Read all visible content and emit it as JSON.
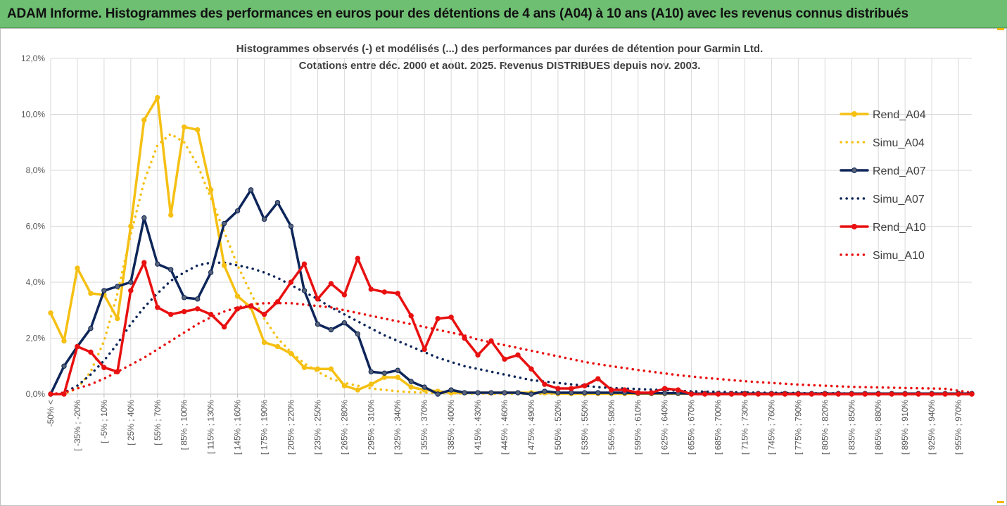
{
  "header": {
    "title": "ADAM Informe. Histogrammes des performances en euros pour des détentions de 4 ans (A04) à 10 ans (A10) avec les revenus connus distribués"
  },
  "chart_data": {
    "type": "line",
    "title_line1": "Histogrammes observés (-) et modélisés (...) des performances par durées de détention pour Garmin Ltd.",
    "title_line2": "Cotations entre déc. 2000 et aoüt. 2025.  Revenus DISTRIBUES depuis nov. 2003.",
    "ylim": [
      0,
      12
    ],
    "y_ticks": [
      "0,0%",
      "2,0%",
      "4,0%",
      "6,0%",
      "8,0%",
      "10,0%",
      "12,0%"
    ],
    "grid": true,
    "legend_position": "right",
    "x_tick_labels": [
      "-50% <",
      "[ -35% ; -20%",
      "[ -5% ; 10%",
      "[ 25% ; 40%",
      "[ 55% ; 70%",
      "[ 85% ; 100%",
      "[ 115% ; 130%",
      "[ 145% ; 160%",
      "[ 175% ; 190%",
      "[ 205% ; 220%",
      "[ 235% ; 250%",
      "[ 265% ; 280%",
      "[ 295% ; 310%",
      "[ 325% ; 340%",
      "[ 355% ; 370%",
      "[ 385% ; 400%",
      "[ 415% ; 430%",
      "[ 445% ; 460%",
      "[ 475% ; 490%",
      "[ 505% ; 520%",
      "[ 535% ; 550%",
      "[ 565% ; 580%",
      "[ 595% ; 610%",
      "[ 625% ; 640%",
      "[ 655% ; 670%",
      "[ 685% ; 700%",
      "[ 715% ; 730%",
      "[ 745% ; 760%",
      "[ 775% ; 790%",
      "[ 805% ; 820%",
      "[ 835% ; 850%",
      "[ 865% ; 880%",
      "[ 895% ; 910%",
      "[ 925% ; 940%",
      "[ 955% ; 970%"
    ],
    "series": [
      {
        "name": "Rend_A04",
        "color": "#f5c013",
        "style": "solid",
        "values": [
          2.9,
          1.9,
          4.5,
          3.6,
          3.55,
          2.7,
          6.0,
          9.8,
          10.6,
          6.4,
          9.55,
          9.45,
          7.3,
          4.6,
          3.5,
          3.1,
          1.85,
          1.7,
          1.45,
          0.95,
          0.9,
          0.9,
          0.3,
          0.15,
          0.35,
          0.6,
          0.6,
          0.25,
          0.15,
          0.1,
          0.05,
          0.05,
          0.05,
          0.05,
          0.05,
          0.05,
          0.05,
          0.05,
          0.02,
          0.02,
          0.02,
          0.02,
          0.02,
          0.02,
          0.02,
          0.02,
          0.02,
          0.02,
          0.02,
          0.02,
          0.02,
          0.02,
          0.02,
          0.02,
          0.02,
          0.02,
          0.02,
          0.02,
          0.02,
          0.02,
          0.02,
          0.02,
          0.02,
          0.02,
          0.02,
          0.02,
          0.02,
          0.02,
          0.02,
          0.02
        ]
      },
      {
        "name": "Simu_A04",
        "color": "#f5c013",
        "style": "dotted",
        "values": [
          0.0,
          0.0,
          0.2,
          0.8,
          1.9,
          3.6,
          5.7,
          7.6,
          8.9,
          9.3,
          9.0,
          8.2,
          7.0,
          5.8,
          4.6,
          3.6,
          2.7,
          2.0,
          1.5,
          1.1,
          0.8,
          0.55,
          0.4,
          0.3,
          0.2,
          0.15,
          0.1,
          0.07,
          0.05,
          0.04,
          0.03,
          0.02,
          0.02,
          0.01,
          0.01,
          0.01,
          0.01,
          0.01,
          0.01,
          0.01,
          0.01,
          0.01,
          0.01,
          0.01,
          0.01,
          0.01,
          0.01,
          0.01,
          0.01,
          0.01,
          0.01,
          0.01,
          0.01,
          0.01,
          0.01,
          0.01,
          0.01,
          0.01,
          0.01,
          0.01,
          0.01,
          0.01,
          0.01,
          0.01,
          0.01,
          0.01,
          0.01,
          0.01,
          0.01,
          0.01
        ]
      },
      {
        "name": "Rend_A07",
        "color": "#0d2559",
        "style": "solid",
        "values": [
          0.0,
          1.0,
          1.7,
          2.35,
          3.7,
          3.85,
          4.0,
          6.3,
          4.65,
          4.45,
          3.45,
          3.4,
          4.35,
          6.1,
          6.55,
          7.3,
          6.25,
          6.85,
          6.0,
          3.7,
          2.5,
          2.3,
          2.55,
          2.15,
          0.8,
          0.75,
          0.85,
          0.45,
          0.25,
          0.0,
          0.15,
          0.05,
          0.05,
          0.05,
          0.05,
          0.05,
          0.0,
          0.1,
          0.05,
          0.05,
          0.05,
          0.05,
          0.05,
          0.05,
          0.03,
          0.03,
          0.03,
          0.03,
          0.02,
          0.02,
          0.02,
          0.02,
          0.02,
          0.02,
          0.02,
          0.02,
          0.02,
          0.02,
          0.02,
          0.02,
          0.02,
          0.02,
          0.02,
          0.02,
          0.02,
          0.02,
          0.02,
          0.02,
          0.02,
          0.02
        ]
      },
      {
        "name": "Simu_A07",
        "color": "#0d2559",
        "style": "dotted",
        "values": [
          0.0,
          0.05,
          0.3,
          0.7,
          1.2,
          1.8,
          2.5,
          3.1,
          3.6,
          4.05,
          4.35,
          4.6,
          4.7,
          4.7,
          4.6,
          4.5,
          4.35,
          4.15,
          3.9,
          3.65,
          3.4,
          3.1,
          2.85,
          2.6,
          2.35,
          2.1,
          1.9,
          1.7,
          1.5,
          1.3,
          1.15,
          1.0,
          0.9,
          0.8,
          0.7,
          0.6,
          0.5,
          0.45,
          0.4,
          0.35,
          0.3,
          0.25,
          0.22,
          0.2,
          0.18,
          0.16,
          0.14,
          0.12,
          0.1,
          0.09,
          0.08,
          0.07,
          0.06,
          0.05,
          0.05,
          0.04,
          0.04,
          0.03,
          0.03,
          0.03,
          0.02,
          0.02,
          0.02,
          0.02,
          0.02,
          0.02,
          0.01,
          0.01,
          0.01,
          0.01
        ]
      },
      {
        "name": "Rend_A10",
        "color": "#e81010",
        "style": "solid",
        "values": [
          0.0,
          0.0,
          1.7,
          1.5,
          0.95,
          0.8,
          3.7,
          4.7,
          3.1,
          2.85,
          2.95,
          3.05,
          2.85,
          2.4,
          3.05,
          3.15,
          2.85,
          3.3,
          4.0,
          4.65,
          3.4,
          3.95,
          3.55,
          4.85,
          3.75,
          3.65,
          3.6,
          2.8,
          1.6,
          2.7,
          2.75,
          2.0,
          1.4,
          1.9,
          1.25,
          1.4,
          0.9,
          0.35,
          0.2,
          0.2,
          0.3,
          0.55,
          0.15,
          0.15,
          0.05,
          0.05,
          0.2,
          0.15,
          0.0,
          0.0,
          0.0,
          0.0,
          0.0,
          0.0,
          0.0,
          0.0,
          0.0,
          0.0,
          0.0,
          0.0,
          0.0,
          0.0,
          0.0,
          0.0,
          0.0,
          0.0,
          0.0,
          0.0,
          0.0,
          0.0
        ]
      },
      {
        "name": "Simu_A10",
        "color": "#e81010",
        "style": "dotted",
        "values": [
          0.0,
          0.05,
          0.2,
          0.35,
          0.55,
          0.8,
          1.05,
          1.3,
          1.6,
          1.9,
          2.2,
          2.5,
          2.75,
          2.95,
          3.1,
          3.2,
          3.25,
          3.25,
          3.25,
          3.2,
          3.15,
          3.1,
          3.0,
          2.9,
          2.8,
          2.7,
          2.6,
          2.5,
          2.4,
          2.3,
          2.2,
          2.1,
          1.95,
          1.85,
          1.75,
          1.65,
          1.55,
          1.45,
          1.35,
          1.25,
          1.15,
          1.07,
          1.0,
          0.93,
          0.86,
          0.8,
          0.74,
          0.68,
          0.63,
          0.58,
          0.54,
          0.5,
          0.46,
          0.43,
          0.4,
          0.37,
          0.34,
          0.32,
          0.3,
          0.28,
          0.26,
          0.25,
          0.24,
          0.23,
          0.22,
          0.21,
          0.2,
          0.19,
          0.12,
          0.05
        ]
      }
    ]
  }
}
